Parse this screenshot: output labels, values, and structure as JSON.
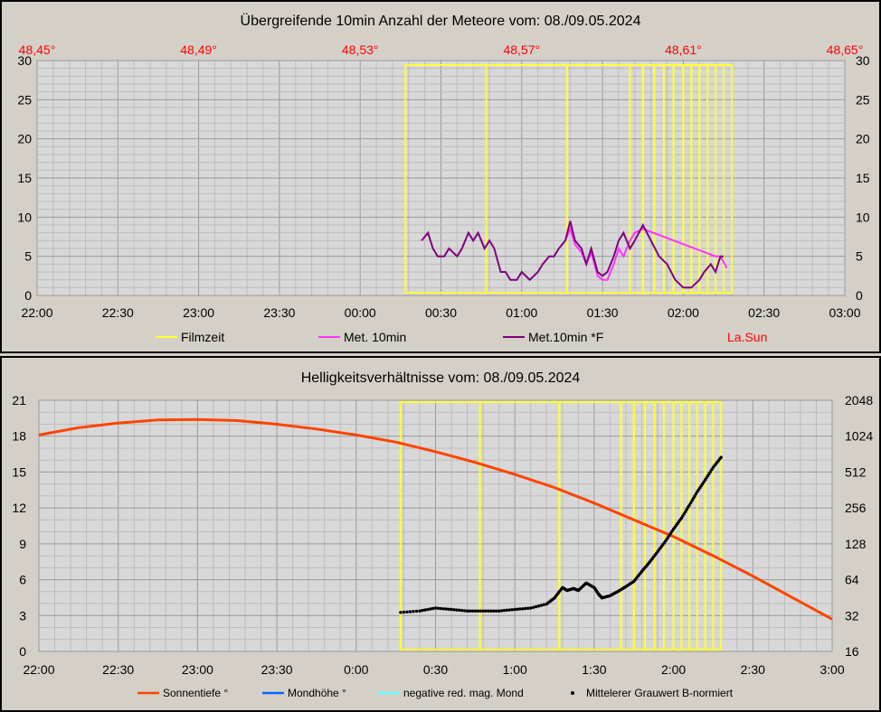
{
  "colors": {
    "filmzeit": "#ffff33",
    "met10": "#ff33ff",
    "met10f": "#800080",
    "lasun": "#ff0000",
    "sonnentiefe": "#ff4400",
    "mondhoehe": "#0066ff",
    "negmond": "#66ffff",
    "grauwert": "#000000"
  },
  "chart_data": [
    {
      "type": "line",
      "title": "Übergreifende 10min Anzahl der Meteore vom: 08./09.05.2024",
      "x_tick_labels": [
        "22:00",
        "22:30",
        "23:00",
        "23:30",
        "00:00",
        "00:30",
        "01:00",
        "01:30",
        "02:00",
        "02:30",
        "03:00"
      ],
      "x_range_hours": [
        22,
        27
      ],
      "top_axis_labels": [
        "48,45°",
        "48,49°",
        "48,53°",
        "48,57°",
        "48,61°",
        "48,65°"
      ],
      "y_range": [
        0,
        30
      ],
      "y_ticks": [
        0,
        5,
        10,
        15,
        20,
        25,
        30
      ],
      "grid": true,
      "legend": [
        "Filmzeit",
        "Met. 10min",
        "Met.10min *F",
        "La.Sun"
      ],
      "film_blocks": [
        [
          24.28,
          24.78
        ],
        [
          24.78,
          25.28
        ],
        [
          25.28,
          25.67
        ],
        [
          25.67,
          25.75
        ],
        [
          25.75,
          25.82
        ],
        [
          25.82,
          25.88
        ],
        [
          25.88,
          25.94
        ],
        [
          25.94,
          26.0
        ],
        [
          26.0,
          26.05
        ],
        [
          26.05,
          26.1
        ],
        [
          26.1,
          26.15
        ],
        [
          26.15,
          26.2
        ],
        [
          26.2,
          26.25
        ],
        [
          26.25,
          26.3
        ]
      ],
      "series": [
        {
          "name": "Met.10min *F",
          "x": [
            24.38,
            24.42,
            24.45,
            24.48,
            24.52,
            24.55,
            24.6,
            24.63,
            24.67,
            24.7,
            24.73,
            24.77,
            24.8,
            24.83,
            24.87,
            24.9,
            24.93,
            24.97,
            25.0,
            25.05,
            25.1,
            25.13,
            25.17,
            25.2,
            25.23,
            25.27,
            25.3,
            25.33,
            25.37,
            25.4,
            25.43,
            25.47,
            25.5,
            25.53,
            25.57,
            25.6,
            25.63,
            25.67,
            25.7,
            25.75,
            25.8,
            25.85,
            25.9,
            25.95,
            26.0,
            26.05,
            26.1,
            26.13,
            26.17,
            26.2,
            26.23,
            26.25
          ],
          "y": [
            7,
            8,
            6,
            5,
            5,
            6,
            5,
            6,
            8,
            7,
            8,
            6,
            7,
            6,
            3,
            3,
            2,
            2,
            3,
            2,
            3,
            4,
            5,
            5,
            6,
            7,
            9.5,
            7,
            6,
            4,
            6,
            3,
            2.5,
            3,
            5,
            7,
            8,
            6,
            7,
            9,
            7,
            5,
            4,
            2,
            1,
            1,
            2,
            3,
            4,
            3,
            5,
            5
          ]
        },
        {
          "name": "Met. 10min",
          "x": [
            25.27,
            25.3,
            25.33,
            25.37,
            25.4,
            25.43,
            25.47,
            25.5,
            25.53,
            25.57,
            25.6,
            25.63,
            25.67,
            25.7,
            25.75,
            26.2,
            26.23,
            26.27
          ],
          "y": [
            7,
            8.5,
            6.5,
            5.5,
            4,
            5.5,
            2.5,
            2,
            2,
            4,
            6,
            5,
            7,
            8,
            8.5,
            5,
            5,
            3.5
          ]
        }
      ]
    },
    {
      "type": "line",
      "title": "Helligkeitsverhältnisse vom: 08./09.05.2024",
      "x_tick_labels": [
        "22:00",
        "22:30",
        "23:00",
        "23:30",
        "0:00",
        "0:30",
        "1:00",
        "1:30",
        "2:00",
        "2:30",
        "3:00"
      ],
      "x_range_hours": [
        22,
        27
      ],
      "y_left_range": [
        0,
        21
      ],
      "y_left_ticks": [
        0,
        3,
        6,
        9,
        12,
        15,
        18,
        21
      ],
      "y_right_scale": "log2",
      "y_right_ticks": [
        16,
        32,
        64,
        128,
        256,
        512,
        1024,
        2048
      ],
      "grid": true,
      "legend": [
        "Sonnentiefe °",
        "Mondhöhe °",
        "negative red. mag. Mond",
        "Mittelerer Grauwert B-normiert"
      ],
      "film_blocks": [
        [
          24.28,
          24.78
        ],
        [
          24.78,
          25.28
        ],
        [
          25.28,
          25.67
        ],
        [
          25.67,
          25.75
        ],
        [
          25.75,
          25.82
        ],
        [
          25.82,
          25.88
        ],
        [
          25.88,
          25.94
        ],
        [
          25.94,
          26.0
        ],
        [
          26.0,
          26.05
        ],
        [
          26.05,
          26.1
        ],
        [
          26.1,
          26.15
        ],
        [
          26.15,
          26.2
        ],
        [
          26.2,
          26.25
        ],
        [
          26.25,
          26.3
        ]
      ],
      "series": [
        {
          "name": "Sonnentiefe °",
          "x": [
            22.0,
            22.25,
            22.5,
            22.75,
            23.0,
            23.25,
            23.5,
            23.75,
            24.0,
            24.25,
            24.5,
            24.75,
            25.0,
            25.25,
            25.5,
            25.75,
            26.0,
            26.25,
            26.5,
            26.75,
            27.0
          ],
          "y": [
            18.1,
            18.7,
            19.1,
            19.35,
            19.4,
            19.3,
            19.0,
            18.6,
            18.1,
            17.5,
            16.7,
            15.8,
            14.8,
            13.7,
            12.4,
            11.0,
            9.6,
            8.0,
            6.3,
            4.5,
            2.7
          ]
        },
        {
          "name": "Mittelerer Grauwert B-normiert",
          "x": [
            24.28,
            24.4,
            24.5,
            24.6,
            24.7,
            24.8,
            24.9,
            25.0,
            25.1,
            25.2,
            25.25,
            25.3,
            25.33,
            25.37,
            25.4,
            25.45,
            25.5,
            25.53,
            25.55,
            25.6,
            25.65,
            25.7,
            25.75,
            25.8,
            25.85,
            25.9,
            25.95,
            26.0,
            26.05,
            26.1,
            26.15,
            26.2,
            26.25,
            26.3
          ],
          "y": [
            34,
            35,
            37,
            36,
            35,
            35,
            35,
            36,
            37,
            40,
            45,
            55,
            52,
            54,
            52,
            60,
            55,
            48,
            45,
            47,
            51,
            56,
            62,
            75,
            90,
            110,
            135,
            170,
            210,
            270,
            350,
            440,
            560,
            680
          ]
        }
      ]
    }
  ]
}
